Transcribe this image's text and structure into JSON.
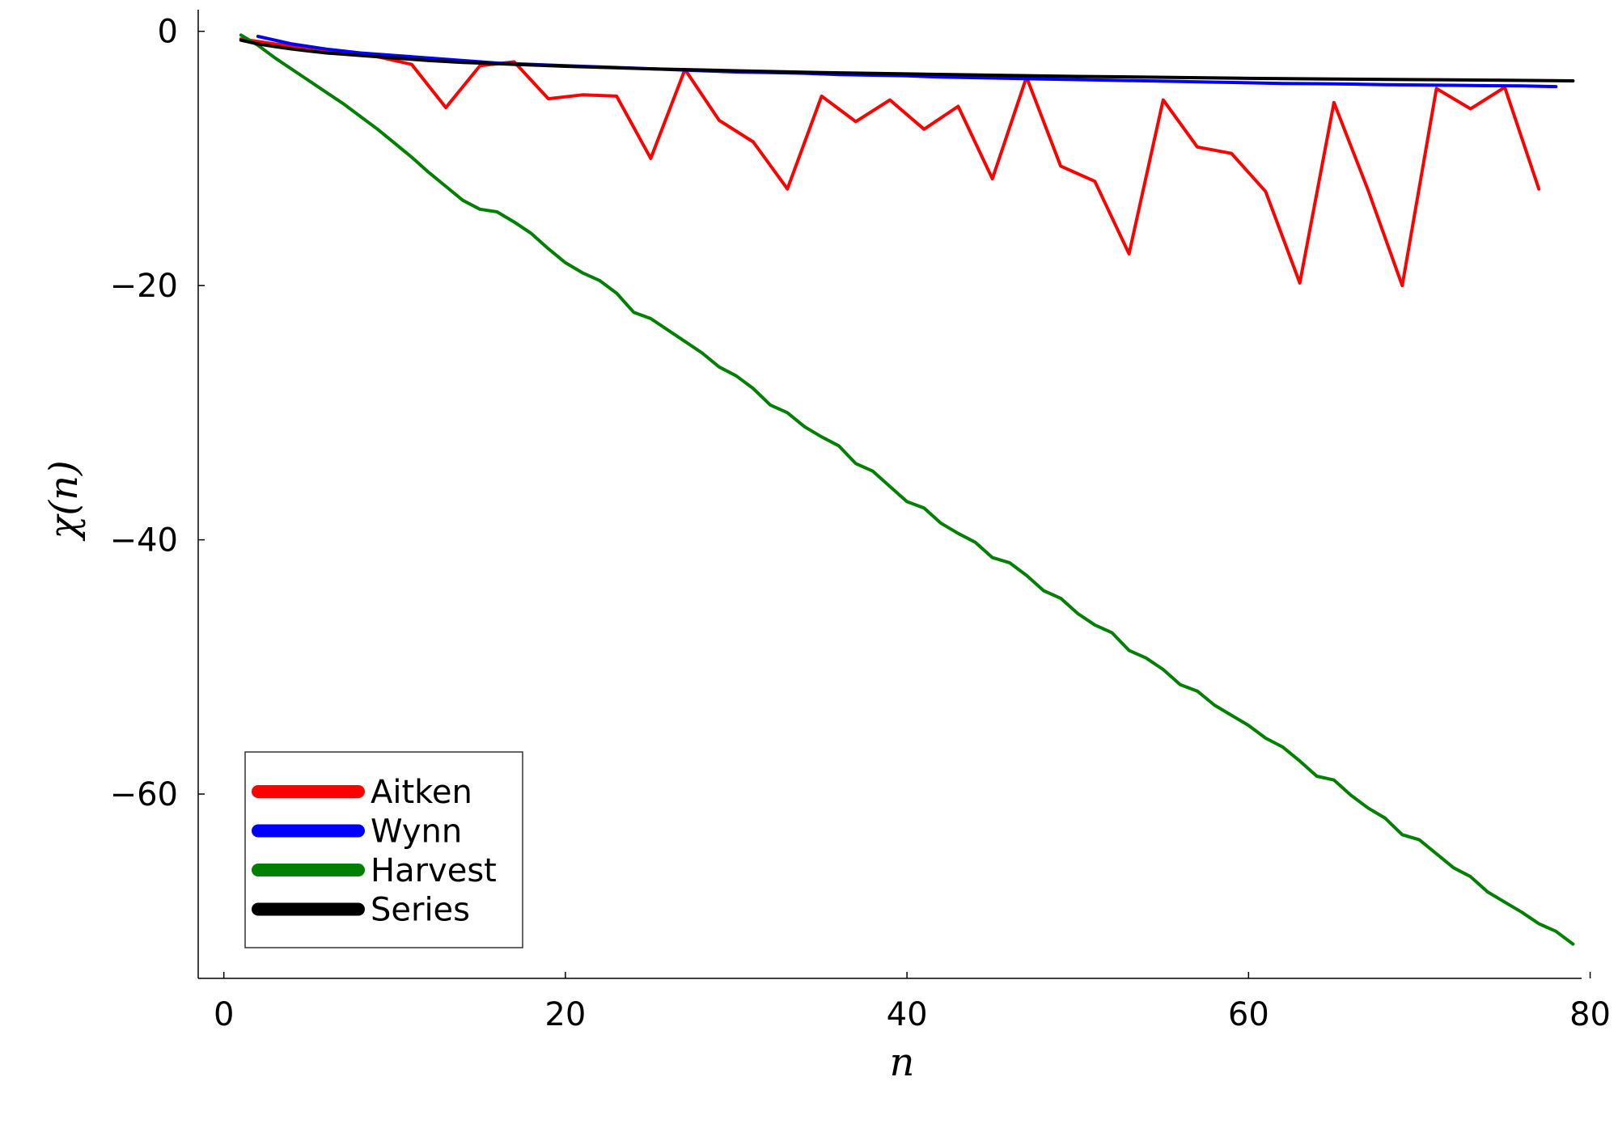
{
  "chart_data": {
    "type": "line",
    "xlabel": "n",
    "ylabel": "χ(n)",
    "xlim": [
      -1.5,
      79.5
    ],
    "ylim": [
      -74.5,
      1.7
    ],
    "xticks": [
      0,
      20,
      40,
      60,
      80
    ],
    "yticks": [
      0,
      -20,
      -40,
      -60
    ],
    "xtick_labels": [
      "0",
      "20",
      "40",
      "60",
      "80"
    ],
    "ytick_labels": [
      "0",
      "−20",
      "−40",
      "−60"
    ],
    "grid": false,
    "legend_position": "bottom-left",
    "series": [
      {
        "name": "Aitken",
        "color": "#ff0000",
        "x": [
          1,
          3,
          5,
          7,
          9,
          11,
          13,
          15,
          17,
          19,
          21,
          23,
          25,
          27,
          29,
          31,
          33,
          35,
          37,
          39,
          41,
          43,
          45,
          47,
          49,
          51,
          53,
          55,
          57,
          59,
          61,
          63,
          65,
          67,
          69,
          71,
          73,
          75,
          77
        ],
        "y": [
          -0.6,
          -1.0,
          -1.3,
          -1.6,
          -2.0,
          -2.6,
          -6.0,
          -2.7,
          -2.4,
          -5.3,
          -5.0,
          -5.1,
          -10.0,
          -3.0,
          -7.0,
          -8.7,
          -12.4,
          -5.1,
          -7.1,
          -5.4,
          -7.7,
          -5.9,
          -11.6,
          -3.6,
          -10.6,
          -11.8,
          -17.5,
          -5.4,
          -9.1,
          -9.6,
          -12.6,
          -19.8,
          -5.6,
          -12.5,
          -20.0,
          -4.5,
          -6.1,
          -4.4,
          -12.4
        ]
      },
      {
        "name": "Wynn",
        "color": "#0000ff",
        "x": [
          2,
          4,
          6,
          8,
          10,
          12,
          14,
          16,
          18,
          20,
          22,
          24,
          26,
          28,
          30,
          32,
          34,
          36,
          38,
          40,
          42,
          44,
          46,
          48,
          50,
          52,
          54,
          56,
          58,
          60,
          62,
          64,
          66,
          68,
          70,
          72,
          74,
          76,
          78
        ],
        "y": [
          -0.4,
          -1.0,
          -1.4,
          -1.7,
          -1.9,
          -2.1,
          -2.3,
          -2.5,
          -2.6,
          -2.7,
          -2.8,
          -2.9,
          -3.0,
          -3.1,
          -3.2,
          -3.25,
          -3.3,
          -3.4,
          -3.45,
          -3.5,
          -3.6,
          -3.65,
          -3.7,
          -3.75,
          -3.8,
          -3.85,
          -3.9,
          -3.95,
          -4.0,
          -4.05,
          -4.1,
          -4.12,
          -4.15,
          -4.2,
          -4.22,
          -4.25,
          -4.28,
          -4.3,
          -4.35
        ]
      },
      {
        "name": "Harvest",
        "color": "#008000",
        "x": [
          1,
          2,
          3,
          4,
          5,
          6,
          7,
          8,
          9,
          10,
          11,
          12,
          13,
          14,
          15,
          16,
          17,
          18,
          19,
          20,
          21,
          22,
          23,
          24,
          25,
          26,
          27,
          28,
          29,
          30,
          31,
          32,
          33,
          34,
          35,
          36,
          37,
          38,
          39,
          40,
          41,
          42,
          43,
          44,
          45,
          46,
          47,
          48,
          49,
          50,
          51,
          52,
          53,
          54,
          55,
          56,
          57,
          58,
          59,
          60,
          61,
          62,
          63,
          64,
          65,
          66,
          67,
          68,
          69,
          70,
          71,
          72,
          73,
          74,
          75,
          76,
          77,
          78,
          79
        ],
        "y": [
          -0.3,
          -1.1,
          -2.1,
          -3.0,
          -3.9,
          -4.8,
          -5.7,
          -6.7,
          -7.7,
          -8.8,
          -9.9,
          -11.1,
          -12.2,
          -13.3,
          -14.0,
          -14.2,
          -15.0,
          -15.9,
          -17.1,
          -18.2,
          -19.0,
          -19.6,
          -20.6,
          -22.1,
          -22.6,
          -23.5,
          -24.4,
          -25.3,
          -26.4,
          -27.1,
          -28.1,
          -29.4,
          -30.0,
          -31.1,
          -31.9,
          -32.6,
          -34.0,
          -34.6,
          -35.8,
          -37.0,
          -37.5,
          -38.7,
          -39.5,
          -40.2,
          -41.4,
          -41.8,
          -42.8,
          -44.0,
          -44.6,
          -45.8,
          -46.7,
          -47.3,
          -48.7,
          -49.3,
          -50.2,
          -51.4,
          -51.9,
          -53.0,
          -53.8,
          -54.6,
          -55.6,
          -56.3,
          -57.4,
          -58.6,
          -58.9,
          -60.1,
          -61.1,
          -61.9,
          -63.2,
          -63.6,
          -64.7,
          -65.8,
          -66.5,
          -67.7,
          -68.5,
          -69.3,
          -70.2,
          -70.8,
          -71.8
        ]
      },
      {
        "name": "Series",
        "color": "#000000",
        "x": [
          1,
          2,
          3,
          4,
          5,
          6,
          7,
          8,
          10,
          12,
          14,
          16,
          18,
          20,
          25,
          30,
          35,
          40,
          45,
          50,
          55,
          60,
          65,
          70,
          75,
          79
        ],
        "y": [
          -0.7,
          -1.0,
          -1.2,
          -1.4,
          -1.55,
          -1.7,
          -1.8,
          -1.9,
          -2.1,
          -2.3,
          -2.45,
          -2.55,
          -2.65,
          -2.75,
          -2.95,
          -3.1,
          -3.25,
          -3.35,
          -3.45,
          -3.55,
          -3.62,
          -3.7,
          -3.75,
          -3.8,
          -3.85,
          -3.9
        ]
      }
    ]
  }
}
